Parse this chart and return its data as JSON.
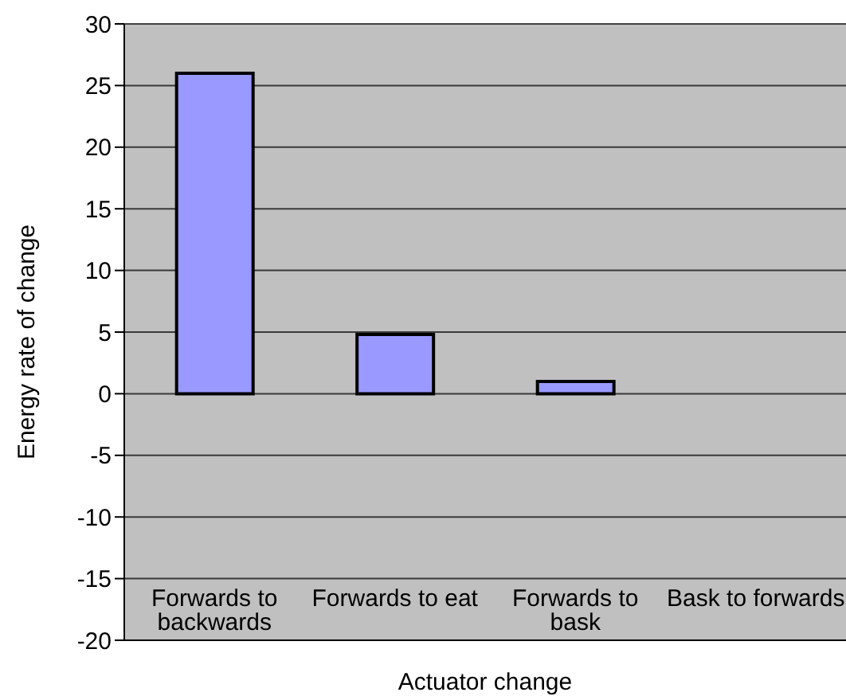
{
  "chart_data": {
    "type": "bar",
    "xlabel": "Actuator change",
    "ylabel": "Energy rate of change",
    "categories": [
      "Forwards to backwards",
      "Forwards to eat",
      "Forwards to bask",
      "Bask to forwards"
    ],
    "values": [
      26,
      4.8,
      1,
      0
    ],
    "color": "#9999ff",
    "ylim": [
      -20,
      30
    ],
    "yticks": [
      -20,
      -15,
      -10,
      -5,
      0,
      5,
      10,
      15,
      20,
      25,
      30
    ],
    "grid": "y",
    "legend": false
  }
}
